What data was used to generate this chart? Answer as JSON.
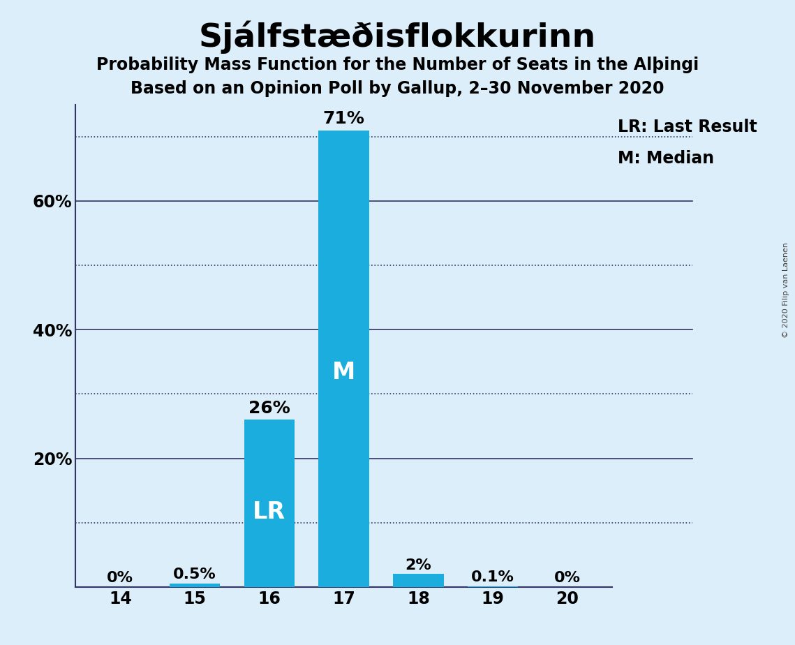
{
  "title": "Sjálfstæðisflokkurinn",
  "subtitle1": "Probability Mass Function for the Number of Seats in the Alþingi",
  "subtitle2": "Based on an Opinion Poll by Gallup, 2–30 November 2020",
  "copyright": "© 2020 Filip van Laenen",
  "categories": [
    14,
    15,
    16,
    17,
    18,
    19,
    20
  ],
  "values": [
    0.0,
    0.5,
    26.0,
    71.0,
    2.0,
    0.1,
    0.0
  ],
  "bar_color": "#1aadde",
  "background_color": "#dceef9",
  "bar_labels": [
    "0%",
    "0.5%",
    "26%",
    "71%",
    "2%",
    "0.1%",
    "0%"
  ],
  "lr_bar": 16,
  "median_bar": 17,
  "lr_label": "LR",
  "median_label": "M",
  "legend_lr": "LR: Last Result",
  "legend_m": "M: Median",
  "solid_lines": [
    20,
    40,
    60
  ],
  "dotted_lines": [
    10,
    30,
    50,
    70
  ],
  "ytick_labels_vals": [
    20,
    40,
    60
  ],
  "ytick_labels_strs": [
    "20%",
    "40%",
    "60%"
  ],
  "ymax": 75,
  "grid_color_solid": "#333366",
  "grid_color_dotted": "#333366",
  "axis_color": "#333366",
  "label_fontsize": 17,
  "bar_label_fontsize": 16,
  "title_fontsize": 34,
  "subtitle_fontsize": 17,
  "inside_label_fontsize": 24,
  "legend_fontsize": 17,
  "copyright_fontsize": 8
}
